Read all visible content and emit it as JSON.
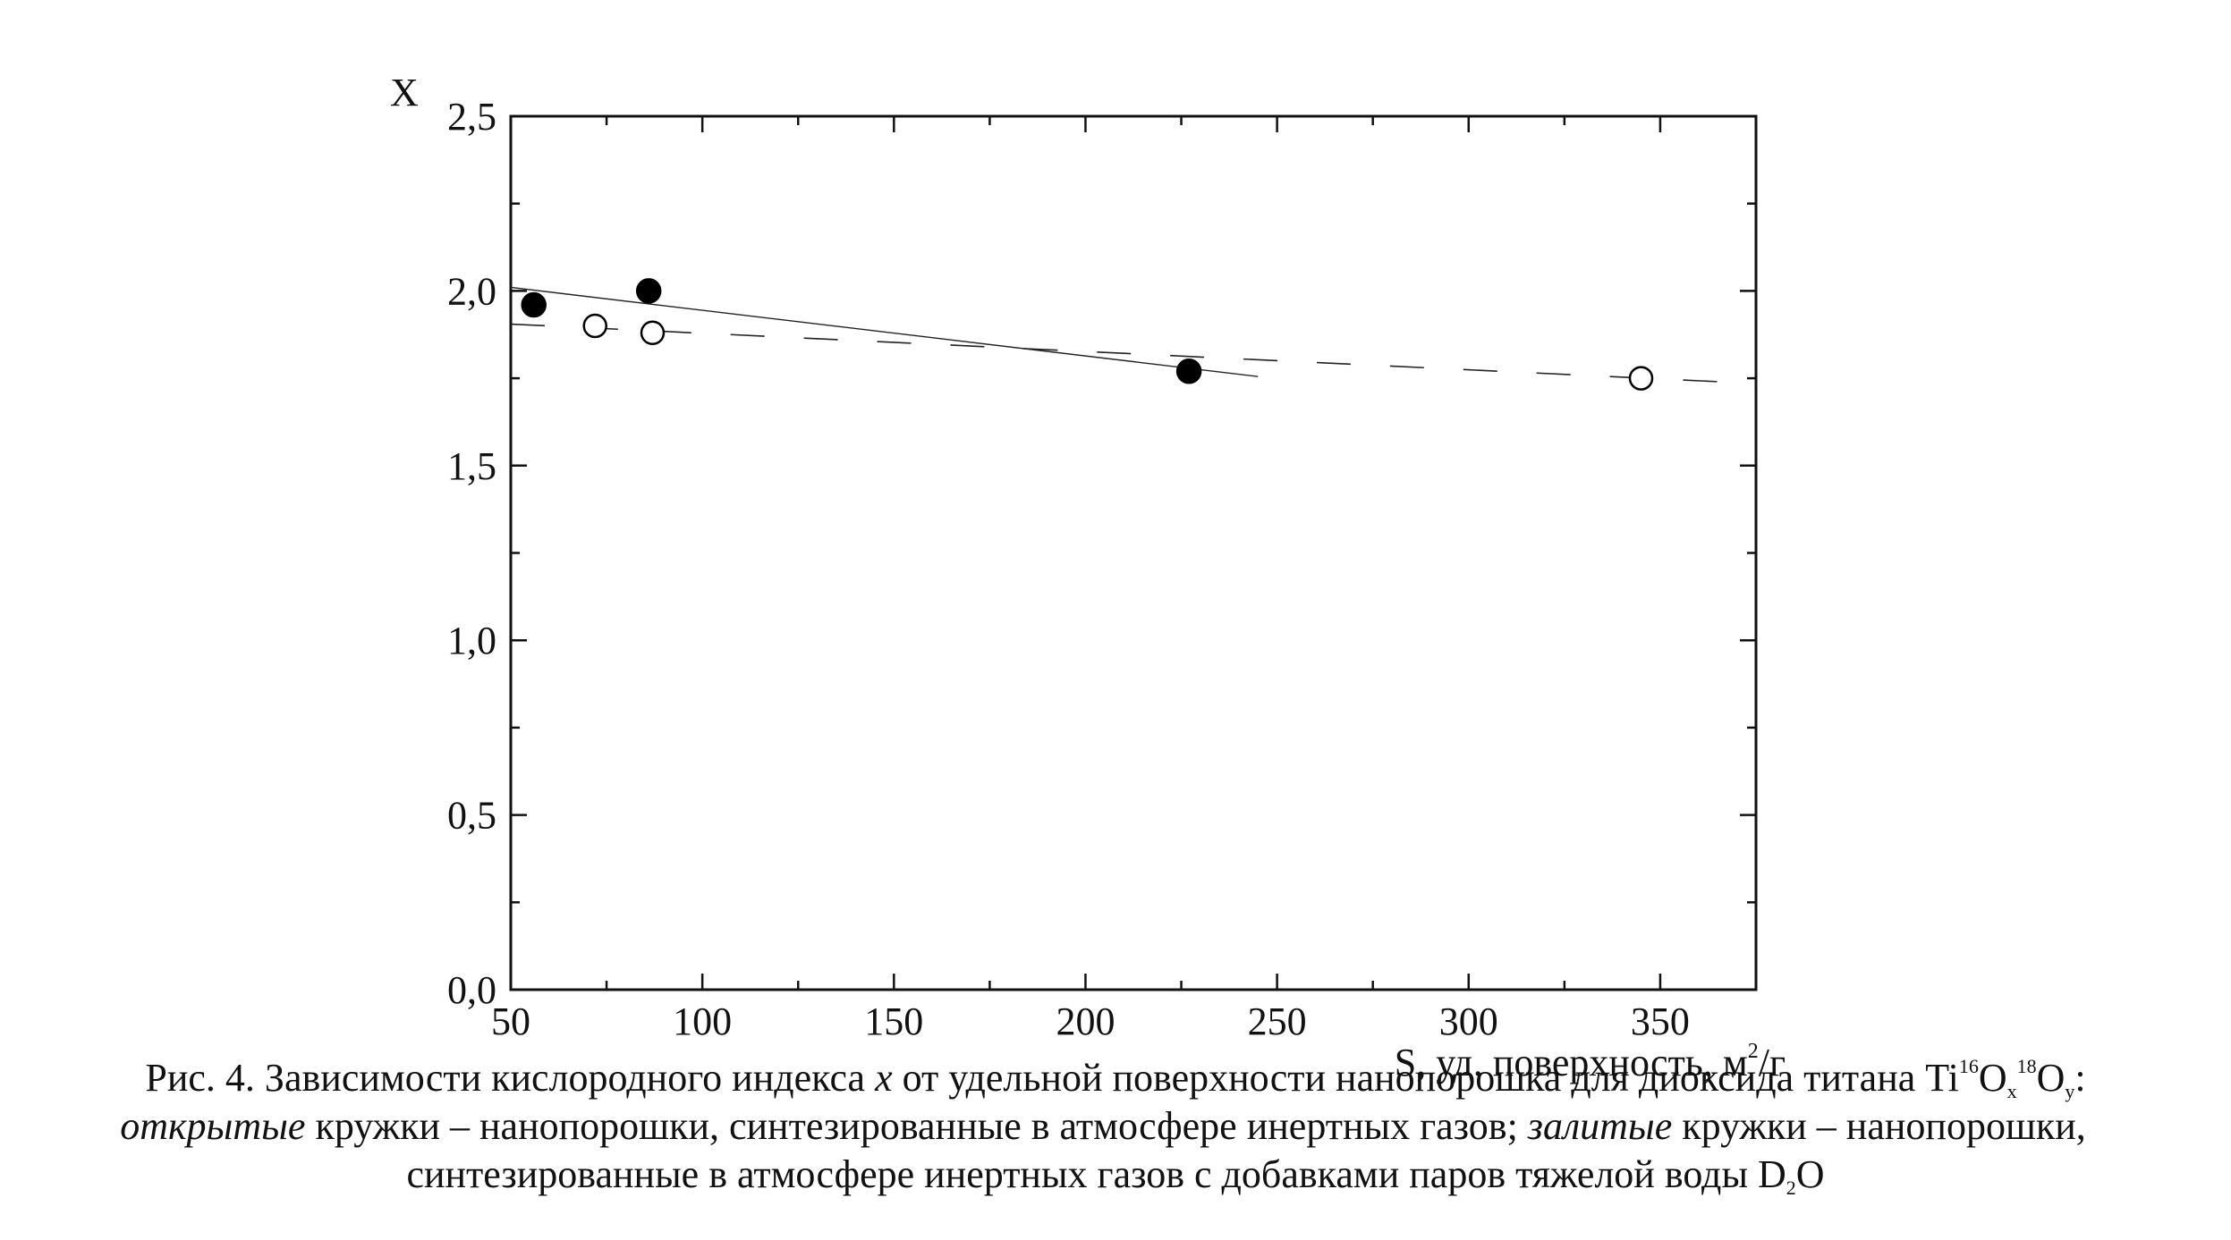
{
  "chart_data": {
    "type": "scatter",
    "xlim": [
      50,
      375
    ],
    "ylim": [
      0.0,
      2.5
    ],
    "x_ticks": [
      "50",
      "100",
      "150",
      "200",
      "250",
      "300",
      "350"
    ],
    "y_ticks": [
      "0,0",
      "0,5",
      "1,0",
      "1,5",
      "2,0",
      "2,5"
    ],
    "ylabel": "X",
    "xlabel": "S, уд. поверхность, м",
    "xlabel_sup": "2",
    "xlabel_tail": "/г",
    "grid": false,
    "series": [
      {
        "marker": "filled-circle",
        "points": [
          [
            56,
            1.96
          ],
          [
            86,
            2.0
          ],
          [
            227,
            1.77
          ]
        ],
        "fit": {
          "style": "solid",
          "x": [
            50,
            245
          ],
          "y": [
            2.01,
            1.755
          ]
        }
      },
      {
        "marker": "open-circle",
        "points": [
          [
            72,
            1.9
          ],
          [
            87,
            1.88
          ],
          [
            345,
            1.75
          ]
        ],
        "fit": {
          "style": "dashed",
          "x": [
            50,
            375
          ],
          "y": [
            1.905,
            1.735
          ]
        }
      }
    ]
  },
  "caption": {
    "line1_a": "Рис. 4. Зависимости кислородного индекса ",
    "line1_var": "x",
    "line1_b": " от удельной поверхности нанопорошка для диоксида титана Ti",
    "line1_sup1": "16",
    "line1_o1": "O",
    "line1_sub1": "x",
    "line1_sup2": "18",
    "line1_o2": "O",
    "line1_sub2": "y",
    "line1_end": ":",
    "line2_i1": "открытые",
    "line2_a": " кружки – нанопорошки, синтезированные в атмосфере инертных газов; ",
    "line2_i2": "залитые",
    "line2_b": " кружки – нанопорошки,",
    "line3_a": "синтезированные в атмосфере инертных газов с добавками паров тяжелой воды D",
    "line3_sub": "2",
    "line3_b": "O"
  }
}
